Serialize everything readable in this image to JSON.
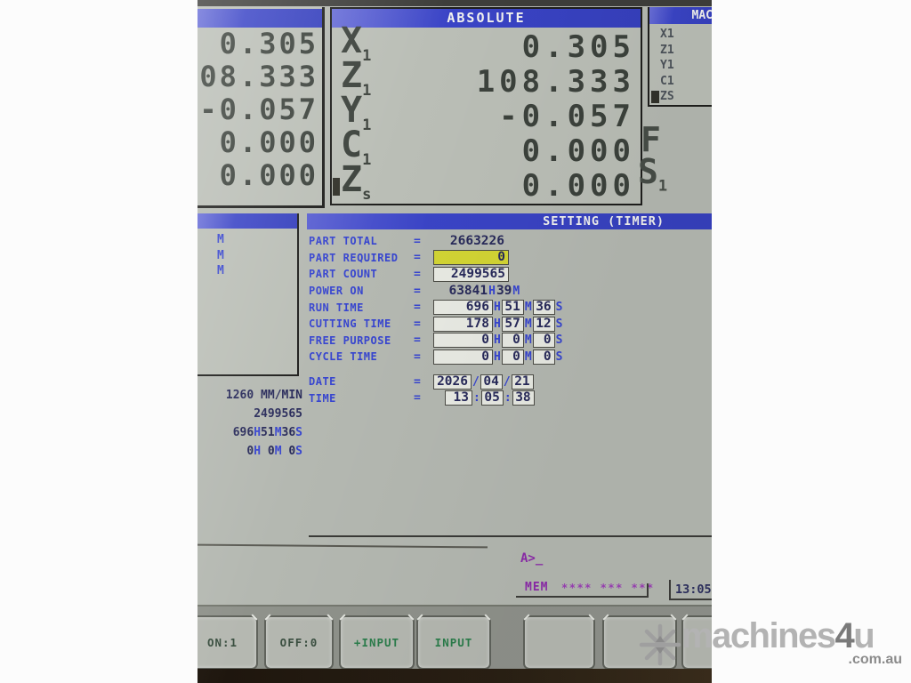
{
  "colors": {
    "header_blue": "#3a44c6",
    "label_blue": "#3745cf",
    "value_navy": "#282a5a",
    "highlight_yellow": "#d2d434",
    "prompt_purple": "#8c2aaa",
    "softkey_green": "#2b7d4b",
    "seg_display": "#3c423c",
    "screen_gray": "#b4b8b1"
  },
  "left_position_panel": {
    "values": [
      "0.305",
      "08.333",
      "-0.057",
      "0.000",
      "0.000"
    ]
  },
  "absolute_panel": {
    "title": "ABSOLUTE",
    "rows": [
      {
        "letter": "X",
        "sub": "1",
        "value": "0.305",
        "cursor": false
      },
      {
        "letter": "Z",
        "sub": "1",
        "value": "108.333",
        "cursor": false
      },
      {
        "letter": "Y",
        "sub": "1",
        "value": "-0.057",
        "cursor": false
      },
      {
        "letter": "C",
        "sub": "1",
        "value": "0.000",
        "cursor": false
      },
      {
        "letter": "Z",
        "sub": "s",
        "value": "0.000",
        "cursor": true
      }
    ]
  },
  "machine_panel": {
    "title": "MAC",
    "items": [
      {
        "label": "X1",
        "cursor": false
      },
      {
        "label": "Z1",
        "cursor": false
      },
      {
        "label": "Y1",
        "cursor": false
      },
      {
        "label": "C1",
        "cursor": false
      },
      {
        "label": "ZS",
        "cursor": true
      }
    ]
  },
  "feed_label": "F",
  "spindle_label": {
    "letter": "S",
    "sub": "1"
  },
  "program_panel": {
    "items": [
      "M",
      "M",
      "M"
    ]
  },
  "setting_panel": {
    "title": "SETTING (TIMER)",
    "equals": "=",
    "rows": [
      {
        "label": "PART TOTAL",
        "type": "plain",
        "value": "2663226"
      },
      {
        "label": "PART REQUIRED",
        "type": "boxy",
        "value": "0"
      },
      {
        "label": "PART COUNT",
        "type": "boxw",
        "value": "2499565"
      },
      {
        "label": "POWER ON",
        "type": "units",
        "parts": [
          [
            "63841",
            "H"
          ],
          [
            "39",
            "M"
          ]
        ]
      },
      {
        "label": "RUN TIME",
        "type": "hms",
        "parts": [
          [
            "696",
            "H"
          ],
          [
            "51",
            "M"
          ],
          [
            "36",
            "S"
          ]
        ]
      },
      {
        "label": "CUTTING TIME",
        "type": "hms",
        "parts": [
          [
            "178",
            "H"
          ],
          [
            "57",
            "M"
          ],
          [
            "12",
            "S"
          ]
        ]
      },
      {
        "label": "FREE PURPOSE",
        "type": "hms",
        "parts": [
          [
            "0",
            "H"
          ],
          [
            "0",
            "M"
          ],
          [
            "0",
            "S"
          ]
        ]
      },
      {
        "label": "CYCLE TIME",
        "type": "hms",
        "parts": [
          [
            "0",
            "H"
          ],
          [
            "0",
            "M"
          ],
          [
            "0",
            "S"
          ]
        ]
      },
      {
        "label": "DATE",
        "type": "sep",
        "sep": "/",
        "parts": [
          "2026",
          "04",
          "21"
        ],
        "gap": true
      },
      {
        "label": "TIME",
        "type": "sep",
        "sep": ":",
        "parts": [
          "13",
          "05",
          "38"
        ],
        "indent": true
      }
    ]
  },
  "left_stats": [
    [
      [
        "1260 MM/MIN",
        "n"
      ]
    ],
    [
      [
        "2499565",
        "n"
      ]
    ],
    [
      [
        "696",
        "n"
      ],
      [
        "H",
        "u"
      ],
      [
        "51",
        "n"
      ],
      [
        "M",
        "u"
      ],
      [
        "36",
        "n"
      ],
      [
        "S",
        "u"
      ]
    ],
    [
      [
        "0",
        "n"
      ],
      [
        "H",
        "u"
      ],
      [
        " 0",
        "n"
      ],
      [
        "M",
        "u"
      ],
      [
        " 0",
        "n"
      ],
      [
        "S",
        "u"
      ]
    ]
  ],
  "prompt": "A>_",
  "status": {
    "mode": "MEM",
    "stars": "**** *** ***",
    "clock": "13:05"
  },
  "softkeys": [
    {
      "label": "ON:1",
      "tone": "dark"
    },
    {
      "label": "OFF:0",
      "tone": "dark"
    },
    {
      "label": "+INPUT",
      "tone": "green"
    },
    {
      "label": "INPUT",
      "tone": "green"
    },
    {
      "label": "",
      "tone": "blank"
    },
    {
      "label": "",
      "tone": "blank"
    },
    {
      "label": "",
      "tone": "blank"
    }
  ],
  "watermark": {
    "brand": "machines",
    "four": "4",
    "u": "u",
    "suffix": ".com.au",
    "logo": "snowflake-icon"
  }
}
